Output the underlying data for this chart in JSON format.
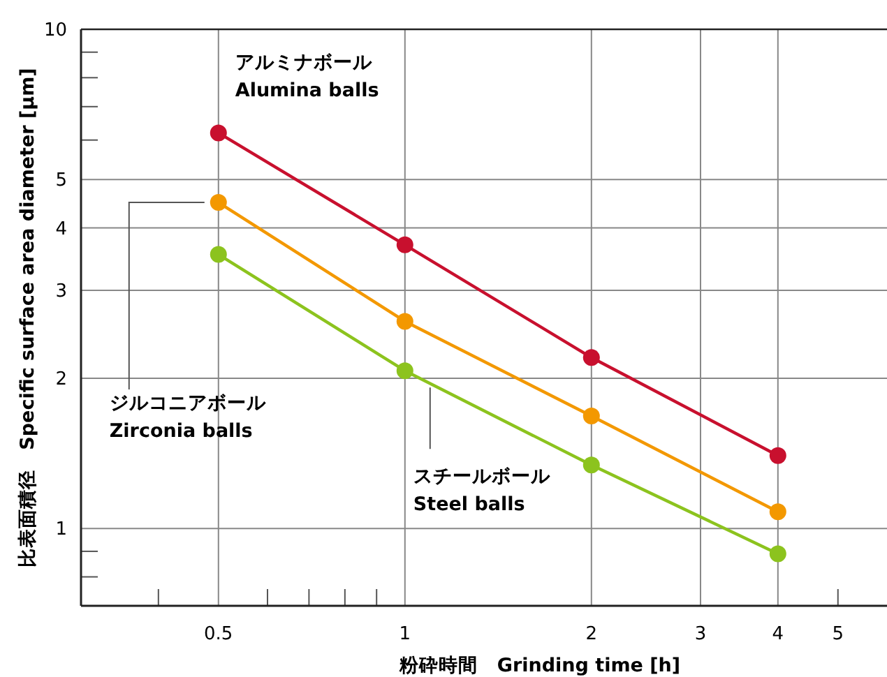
{
  "chart_data": {
    "type": "line",
    "xlabel": "粉砕時間　Grinding time [h]",
    "ylabel": "比表面積径　Specific surface area diameter [µm]",
    "log": "xy",
    "x": [
      0.5,
      1,
      2,
      4
    ],
    "xlim": [
      0.3,
      6
    ],
    "ylim": [
      0.7,
      10
    ],
    "xticks": [
      {
        "value": 0.4,
        "label": null
      },
      0.5,
      {
        "value": 0.6,
        "label": null
      },
      {
        "value": 0.7,
        "label": null
      },
      {
        "value": 0.8,
        "label": null
      },
      {
        "value": 0.9,
        "label": null
      },
      1,
      2,
      3,
      4,
      {
        "value": 5,
        "label": "5"
      }
    ],
    "yticks": [
      {
        "value": 0.8,
        "label": null
      },
      {
        "value": 0.9,
        "label": null
      },
      1,
      2,
      3,
      4,
      5,
      {
        "value": 6,
        "label": null
      },
      {
        "value": 7,
        "label": null
      },
      {
        "value": 8,
        "label": null
      },
      {
        "value": 9,
        "label": null
      },
      10
    ],
    "grid": true,
    "marker": "circle",
    "series": [
      {
        "name": "アルミナボール\nAlumina balls",
        "color": "#c8102e",
        "values": [
          6.2,
          3.7,
          2.2,
          1.4
        ]
      },
      {
        "name": "ジルコニアボール\nZirconia balls",
        "color": "#f39800",
        "values": [
          4.5,
          2.6,
          1.68,
          1.08
        ]
      },
      {
        "name": "スチールボール\nSteel balls",
        "color": "#8cc31e",
        "values": [
          3.54,
          2.07,
          1.34,
          0.89
        ]
      }
    ]
  }
}
